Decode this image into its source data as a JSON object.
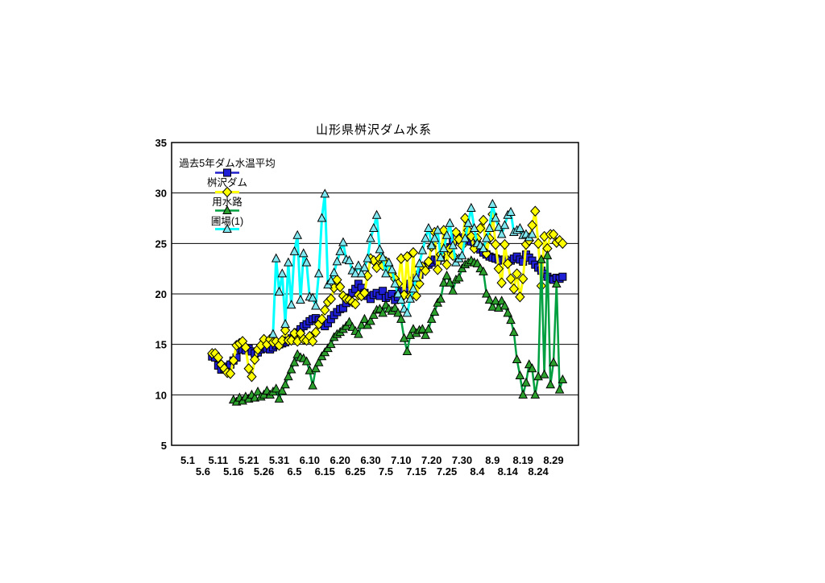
{
  "window": {
    "background": "#ffffff"
  },
  "chart_data": {
    "type": "line",
    "title": "山形県桝沢ダム水系",
    "grid": true,
    "y_axis": {
      "min": 5,
      "max": 35,
      "tick_interval": 5,
      "tick_labels": [
        "35",
        "30",
        "25",
        "20",
        "15",
        "10",
        "5"
      ],
      "gridlines_at": [
        10,
        15,
        20,
        25,
        30
      ]
    },
    "x_axis": {
      "unit": "month.day",
      "tick_labels_row1": [
        "5.1",
        "5.11",
        "5.21",
        "5.31",
        "6.10",
        "6.20",
        "6.30",
        "7.10",
        "7.20",
        "7.30",
        "8.9",
        "8.19",
        "8.29"
      ],
      "tick_labels_row2": [
        "5.6",
        "5.16",
        "5.26",
        "6.5",
        "6.15",
        "6.25",
        "7.5",
        "7.15",
        "7.25",
        "8.4",
        "8.14",
        "8.24"
      ]
    },
    "legend": {
      "position": "top-left-inside",
      "entries": [
        "過去5年ダム水温平均",
        "桝沢ダム",
        "用水路",
        "圃場(1)"
      ]
    },
    "series": [
      {
        "name": "過去5年ダム水温平均",
        "slug": "past-5yr-dam-average",
        "marker": "square",
        "line_color": "#2020CC",
        "marker_fill": "#1F1FD6",
        "start_date": "5.9",
        "daily_values": [
          13.8,
          13.7,
          12.9,
          12.5,
          12.6,
          12.8,
          13.0,
          13.4,
          13.7,
          14.6,
          14.5,
          14.4,
          14.6,
          14.3,
          14.1,
          14.2,
          14.5,
          14.7,
          14.6,
          14.5,
          14.7,
          14.9,
          15.0,
          15.1,
          15.2,
          15.4,
          15.6,
          15.9,
          16.2,
          16.5,
          16.8,
          17.0,
          17.3,
          17.5,
          17.6,
          17.4,
          17.0,
          16.8,
          17.1,
          17.5,
          17.9,
          18.2,
          18.5,
          18.6,
          19.1,
          19.6,
          20.1,
          20.5,
          21.0,
          20.6,
          20.1,
          19.8,
          19.5,
          19.9,
          20.1,
          19.8,
          20.3,
          19.6,
          19.8,
          20.0,
          19.4,
          19.7,
          20.2,
          20.3,
          20.6,
          21.0,
          21.3,
          21.6,
          21.9,
          22.5,
          22.7,
          22.9,
          23.1,
          23.4,
          23.3,
          23.6,
          24.0,
          24.4,
          24.6,
          25.2,
          25.9,
          25.6,
          25.4,
          25.4,
          25.3,
          25.2,
          25.1,
          24.8,
          24.4,
          24.1,
          23.9,
          23.7,
          23.6,
          23.5,
          23.4,
          23.3,
          23.4,
          23.2,
          23.3,
          23.5,
          23.7,
          23.4,
          23.2,
          23.9,
          23.6,
          23.3,
          22.9,
          22.6,
          22.3,
          22.0,
          21.7,
          21.5,
          21.4,
          21.6,
          21.5,
          21.7
        ]
      },
      {
        "name": "桝沢ダム",
        "slug": "masuzawa-dam",
        "marker": "diamond",
        "line_color": "#FFFF00",
        "marker_fill": "#FFFF00",
        "start_date": "5.9",
        "daily_values": [
          14.1,
          14.1,
          13.7,
          13.0,
          12.6,
          12.2,
          12.1,
          13.4,
          14.9,
          15.1,
          15.3,
          14.7,
          12.6,
          11.8,
          13.5,
          14.5,
          14.9,
          15.5,
          15.0,
          15.5,
          15.2,
          15.3,
          14.9,
          15.4,
          16.4,
          15.4,
          15.4,
          16.1,
          15.3,
          16.1,
          15.5,
          15.4,
          15.8,
          15.3,
          16.2,
          17.0,
          17.5,
          18.4,
          19.2,
          19.5,
          20.6,
          21.4,
          20.7,
          19.8,
          19.5,
          19.4,
          19.2,
          19.0,
          19.9,
          19.8,
          20.1,
          21.8,
          23.5,
          23.3,
          22.6,
          23.5,
          22.8,
          23.2,
          22.4,
          22.0,
          21.5,
          21.0,
          23.5,
          19.9,
          23.7,
          19.7,
          24.1,
          19.8,
          21.0,
          22.7,
          22.3,
          23.2,
          24.7,
          26.1,
          22.4,
          23.9,
          26.3,
          22.9,
          24.5,
          23.8,
          26.1,
          25.4,
          24.8,
          27.5,
          26.3,
          25.7,
          24.5,
          25.5,
          26.5,
          27.3,
          24.0,
          25.5,
          27.9,
          24.9,
          22.5,
          21.1,
          24.9,
          23.0,
          21.5,
          20.5,
          22.0,
          19.7,
          21.5,
          24.9,
          25.3,
          26.8,
          28.2,
          25.0,
          20.8,
          25.7,
          24.5,
          25.9,
          25.9,
          25.1,
          25.3,
          25.0
        ]
      },
      {
        "name": "用水路",
        "slug": "irrigation-canal",
        "marker": "triangle",
        "line_color": "#00A040",
        "marker_fill": "#2CA02C",
        "start_date": "5.16",
        "daily_values": [
          9.5,
          9.3,
          9.7,
          9.4,
          9.8,
          9.6,
          10.0,
          9.7,
          10.3,
          9.8,
          10.0,
          10.4,
          10.0,
          10.3,
          10.6,
          9.6,
          10.4,
          11.0,
          11.8,
          12.5,
          13.2,
          14.0,
          13.7,
          13.6,
          13.3,
          12.4,
          10.9,
          12.6,
          13.2,
          13.8,
          14.2,
          14.6,
          15.0,
          15.7,
          16.0,
          16.2,
          16.5,
          16.8,
          17.2,
          16.7,
          16.3,
          16.0,
          16.9,
          17.5,
          16.9,
          17.3,
          17.9,
          18.4,
          18.5,
          18.1,
          18.9,
          18.5,
          18.3,
          18.6,
          18.1,
          17.5,
          15.6,
          14.3,
          15.9,
          16.5,
          16.1,
          16.4,
          16.5,
          15.9,
          16.5,
          17.5,
          18.2,
          19.1,
          19.5,
          21.1,
          21.8,
          21.1,
          20.3,
          21.4,
          21.6,
          22.5,
          22.9,
          23.1,
          23.3,
          23.1,
          23.0,
          22.5,
          22.2,
          20.0,
          19.4,
          18.7,
          19.3,
          18.6,
          19.3,
          18.8,
          18.1,
          17.4,
          16.2,
          13.5,
          11.9,
          10.0,
          11.2,
          13.0,
          12.6,
          10.0,
          11.8,
          23.4,
          12.0,
          23.8,
          11.0,
          13.2,
          21.0,
          10.5,
          11.5
        ]
      },
      {
        "name": "圃場(1)",
        "slug": "field-1",
        "marker": "triangle",
        "line_color": "#00FFFF",
        "marker_fill": "#7FE8F0",
        "start_date": "5.29",
        "daily_values": [
          16.0,
          23.5,
          20.2,
          22.0,
          17.0,
          23.1,
          18.9,
          24.2,
          25.8,
          19.4,
          24.0,
          23.1,
          19.7,
          19.6,
          18.8,
          22.0,
          27.5,
          29.9,
          20.9,
          21.3,
          22.1,
          23.2,
          24.2,
          25.1,
          23.4,
          23.3,
          22.3,
          22.0,
          22.8,
          22.0,
          22.6,
          23.5,
          25.5,
          26.5,
          27.8,
          24.4,
          23.6,
          22.0,
          23.1,
          22.4,
          21.0,
          20.0,
          19.4,
          18.5,
          18.1,
          19.5,
          20.5,
          21.6,
          23.0,
          24.3,
          25.5,
          26.5,
          24.8,
          25.5,
          26.3,
          23.6,
          24.5,
          25.8,
          27.0,
          24.8,
          23.1,
          23.5,
          23.8,
          25.5,
          27.0,
          28.5,
          26.5,
          25.0,
          24.8,
          24.5,
          25.5,
          26.5,
          28.9,
          27.5,
          26.6,
          25.9,
          26.8,
          27.8,
          28.1,
          26.1,
          26.3,
          26.5,
          25.8,
          25.9,
          25.6,
          25.9
        ]
      }
    ]
  }
}
